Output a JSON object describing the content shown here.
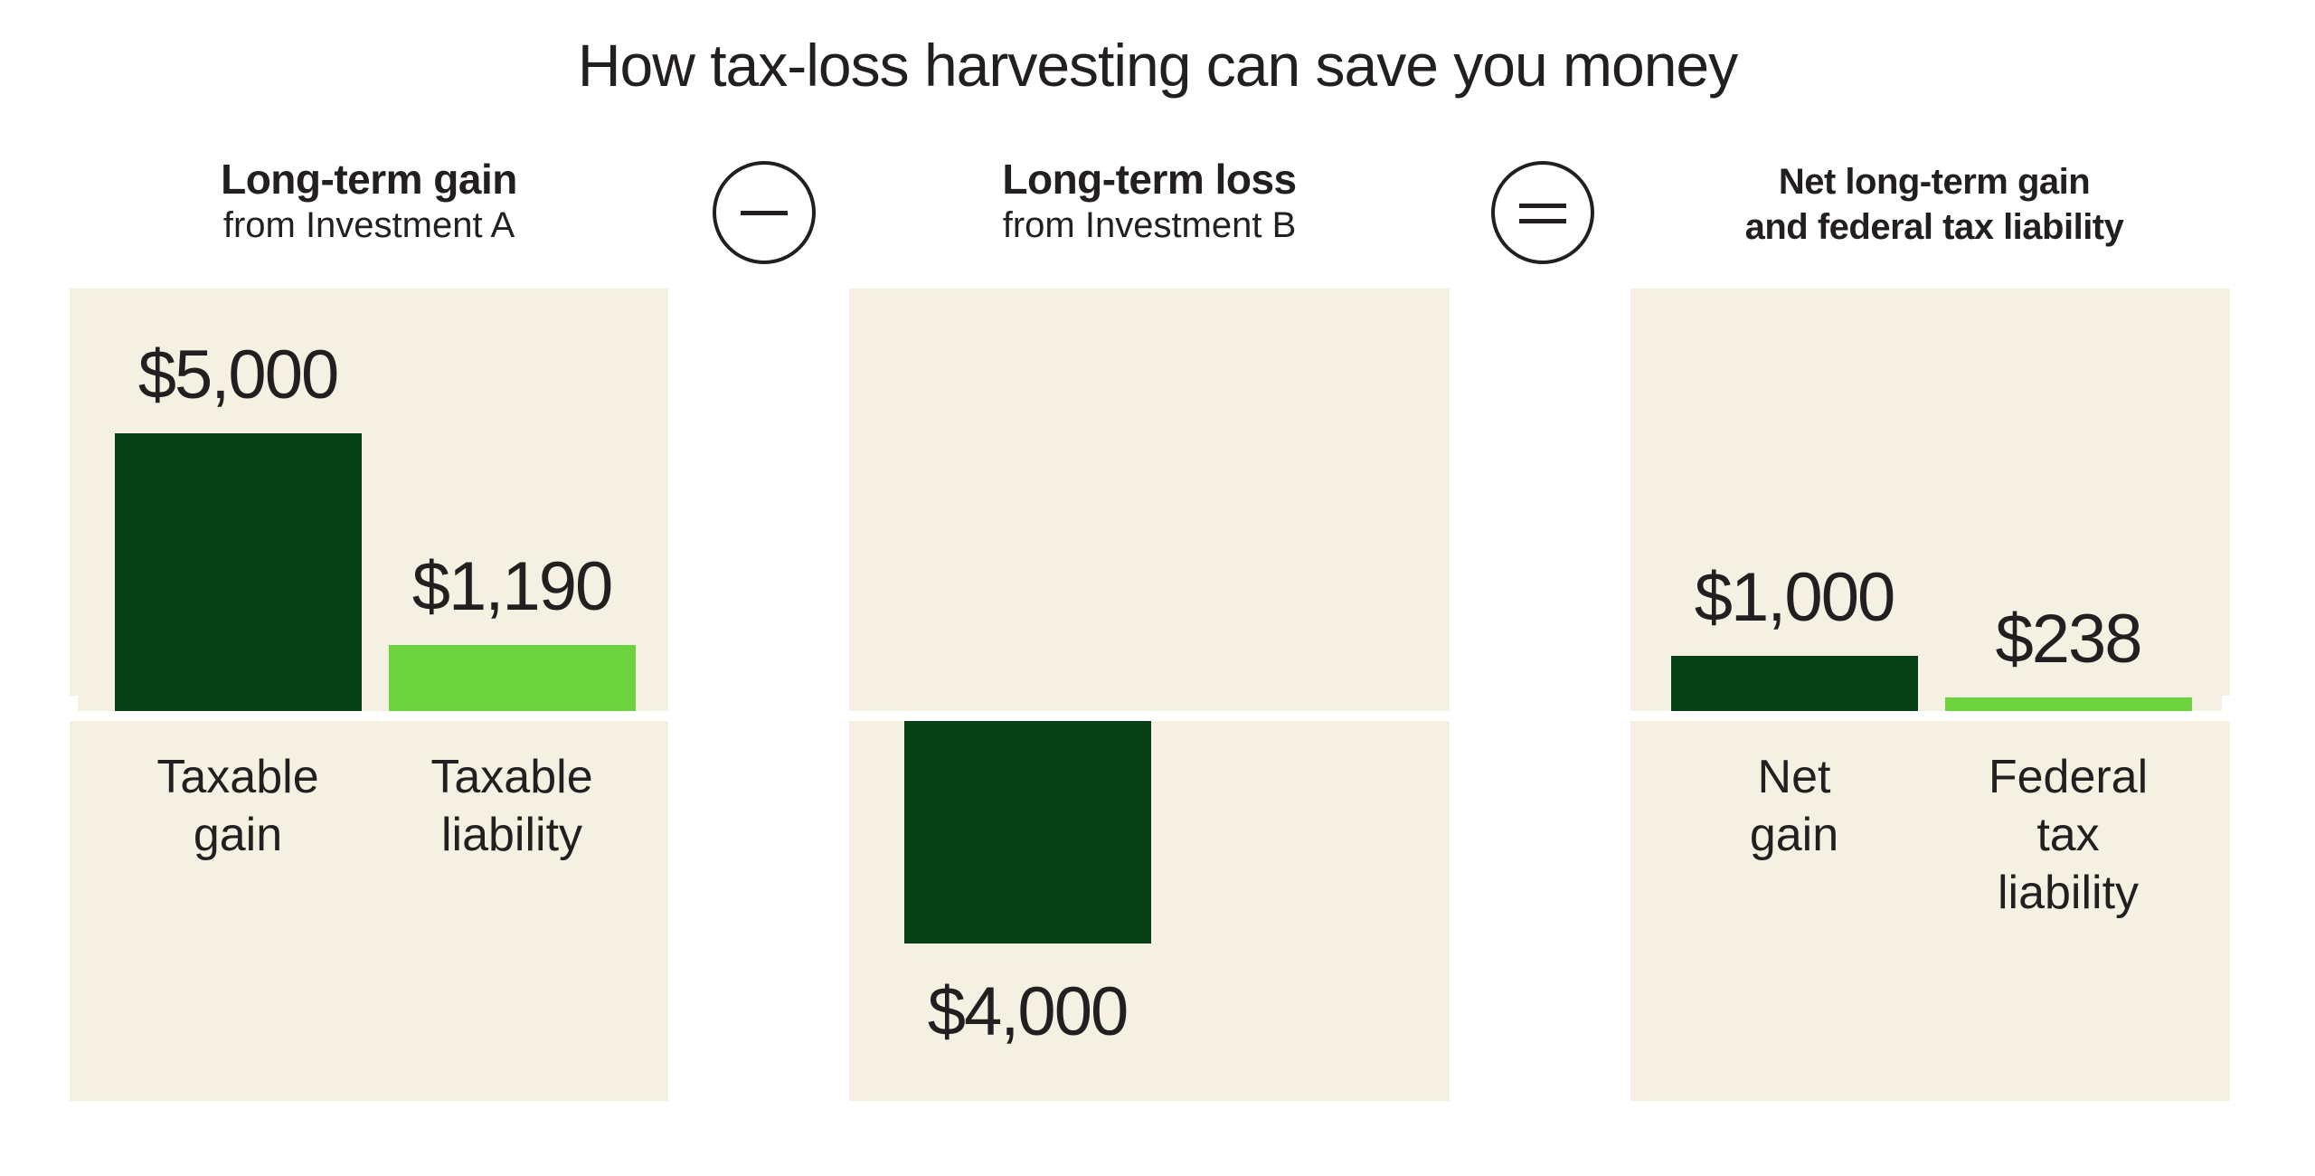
{
  "title": "How tax-loss harvesting can save you money",
  "colors": {
    "dark_green": "#073f16",
    "light_green": "#6cd23d",
    "panel_bg": "#f5f1e2",
    "text": "#231f20",
    "page_bg": "#ffffff"
  },
  "operators": [
    {
      "name": "minus",
      "symbol": "−"
    },
    {
      "name": "equals",
      "symbol": "="
    }
  ],
  "panels": [
    {
      "heading": "Long-term gain",
      "subheading": "from Investment A",
      "bars": [
        {
          "category": "Taxable\ngain",
          "value": 5000,
          "label": "$5,000",
          "color": "dark_green"
        },
        {
          "category": "Taxable\nliability",
          "value": 1190,
          "label": "$1,190",
          "color": "light_green"
        }
      ]
    },
    {
      "heading": "Long-term loss",
      "subheading": "from Investment B",
      "bars": [
        {
          "category": "",
          "value": -4000,
          "label": "$4,000",
          "color": "dark_green"
        }
      ]
    },
    {
      "heading": "Net long-term gain\nand federal tax liability",
      "subheading": "",
      "bars": [
        {
          "category": "Net gain",
          "value": 1000,
          "label": "$1,000",
          "color": "dark_green"
        },
        {
          "category": "Federal tax\nliability",
          "value": 238,
          "label": "$238",
          "color": "light_green"
        }
      ]
    }
  ],
  "chart_data": [
    {
      "type": "bar",
      "title": "Long-term gain",
      "subtitle": "from Investment A",
      "categories": [
        "Taxable gain",
        "Taxable liability"
      ],
      "values": [
        5000,
        1190
      ],
      "value_labels": [
        "$5,000",
        "$1,190"
      ],
      "bar_colors": [
        "#073f16",
        "#6cd23d"
      ],
      "ylim": [
        -7000,
        7600
      ],
      "baseline": 0,
      "grid": false,
      "legend": "none"
    },
    {
      "type": "bar",
      "title": "Long-term loss",
      "subtitle": "from Investment B",
      "categories": [
        "Long-term loss"
      ],
      "values": [
        -4000
      ],
      "value_labels": [
        "$4,000"
      ],
      "bar_colors": [
        "#073f16"
      ],
      "ylim": [
        -7000,
        7600
      ],
      "baseline": 0,
      "grid": false,
      "legend": "none"
    },
    {
      "type": "bar",
      "title": "Net long-term gain and federal tax liability",
      "categories": [
        "Net gain",
        "Federal tax liability"
      ],
      "values": [
        1000,
        238
      ],
      "value_labels": [
        "$1,000",
        "$238"
      ],
      "bar_colors": [
        "#073f16",
        "#6cd23d"
      ],
      "ylim": [
        -7000,
        7600
      ],
      "baseline": 0,
      "grid": false,
      "legend": "none"
    }
  ]
}
